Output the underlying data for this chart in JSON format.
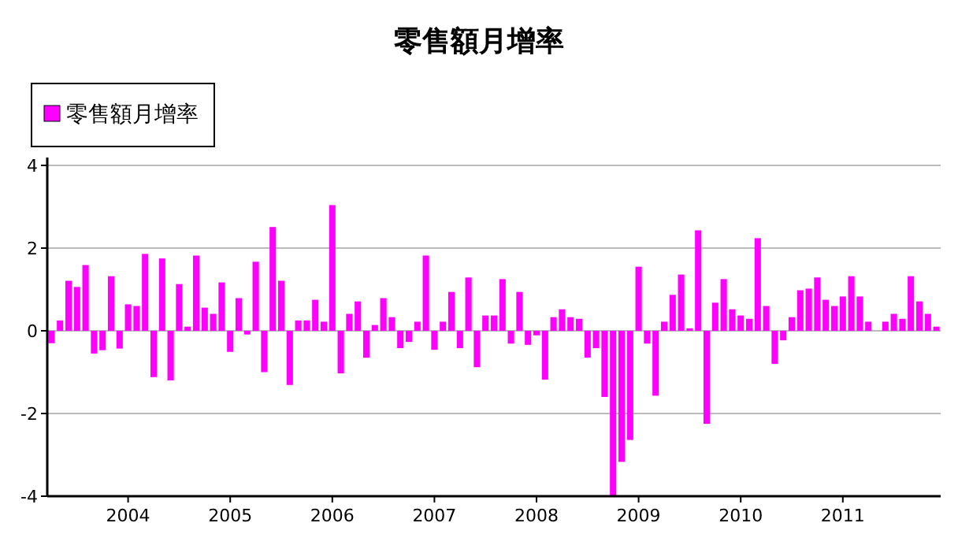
{
  "chart_data": {
    "type": "bar",
    "title": "零售額月增率",
    "categories": [
      null,
      null,
      null,
      null,
      null,
      null,
      null,
      null,
      null,
      "2004",
      null,
      null,
      null,
      null,
      null,
      null,
      null,
      null,
      null,
      null,
      null,
      "2005",
      null,
      null,
      null,
      null,
      null,
      null,
      null,
      null,
      null,
      null,
      null,
      "2006",
      null,
      null,
      null,
      null,
      null,
      null,
      null,
      null,
      null,
      null,
      null,
      "2007",
      null,
      null,
      null,
      null,
      null,
      null,
      null,
      null,
      null,
      null,
      null,
      "2008",
      null,
      null,
      null,
      null,
      null,
      null,
      null,
      null,
      null,
      null,
      null,
      "2009",
      null,
      null,
      null,
      null,
      null,
      null,
      null,
      null,
      null,
      null,
      null,
      "2010",
      null,
      null,
      null,
      null,
      null,
      null,
      null,
      null,
      null,
      null,
      null,
      "2011",
      null,
      null,
      null,
      null,
      null,
      null,
      null,
      null,
      null,
      null,
      null
    ],
    "series": [
      {
        "name": "零售額月增率",
        "color": "#ff00ff",
        "values": [
          -0.3,
          0.25,
          1.21,
          1.06,
          1.59,
          -0.55,
          -0.47,
          1.32,
          -0.43,
          0.64,
          0.6,
          1.86,
          -1.12,
          1.75,
          -1.2,
          1.13,
          0.1,
          1.82,
          0.56,
          0.41,
          1.17,
          -0.51,
          0.79,
          -0.09,
          1.67,
          -1.0,
          2.51,
          1.21,
          -1.31,
          0.25,
          0.25,
          0.75,
          0.22,
          3.04,
          -1.03,
          0.41,
          0.71,
          -0.65,
          0.14,
          0.79,
          0.33,
          -0.42,
          -0.27,
          0.22,
          1.82,
          -0.46,
          0.22,
          0.94,
          -0.42,
          1.29,
          -0.88,
          0.37,
          0.37,
          1.25,
          -0.31,
          0.94,
          -0.34,
          -0.11,
          -1.18,
          0.33,
          0.52,
          0.33,
          0.29,
          -0.65,
          -0.42,
          -1.6,
          -3.99,
          -3.17,
          -2.64,
          1.55,
          -0.31,
          -1.57,
          0.22,
          0.87,
          1.36,
          0.06,
          2.43,
          -2.25,
          0.68,
          1.25,
          0.52,
          0.37,
          0.29,
          2.24,
          0.6,
          -0.8,
          -0.23,
          0.33,
          0.98,
          1.02,
          1.29,
          0.75,
          0.6,
          0.83,
          1.32,
          0.83,
          0.22,
          null,
          0.22,
          0.41,
          0.29,
          1.32,
          0.71,
          0.41,
          0.1
        ]
      }
    ],
    "ylim": [
      -4,
      4
    ],
    "yticks": [
      -4,
      -2,
      0,
      2,
      4
    ],
    "grid": "y",
    "legend": "top left"
  }
}
